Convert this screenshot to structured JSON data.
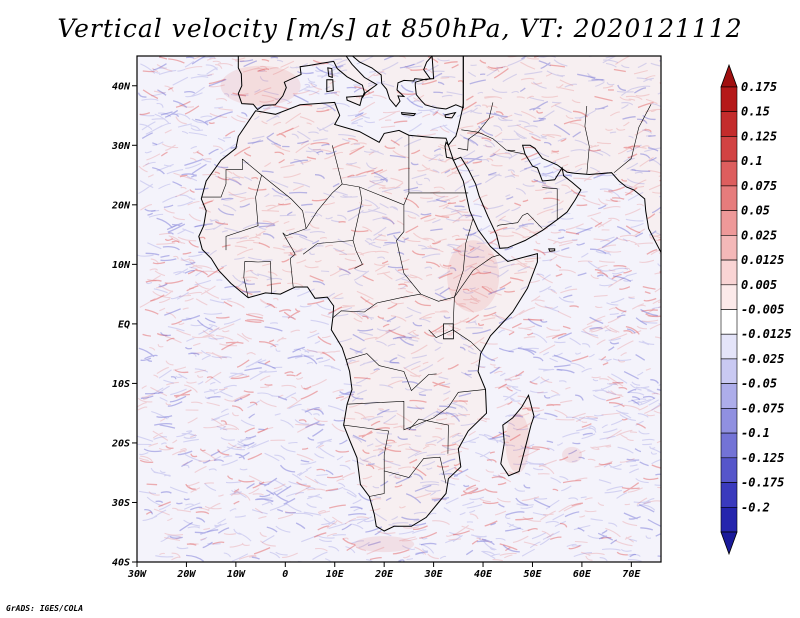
{
  "title": "Vertical velocity [m/s] at 850hPa, VT: 2020121112",
  "footer": "GrADS: IGES/COLA",
  "map": {
    "lon_range": [
      -30,
      76
    ],
    "lat_range": [
      -40,
      45
    ],
    "lat_ticks": [
      {
        "value": 40,
        "label": "40N"
      },
      {
        "value": 30,
        "label": "30N"
      },
      {
        "value": 20,
        "label": "20N"
      },
      {
        "value": 10,
        "label": "10N"
      },
      {
        "value": 0,
        "label": "EQ"
      },
      {
        "value": -10,
        "label": "10S"
      },
      {
        "value": -20,
        "label": "20S"
      },
      {
        "value": -30,
        "label": "30S"
      },
      {
        "value": -40,
        "label": "40S"
      }
    ],
    "lon_ticks": [
      {
        "value": -30,
        "label": "30W"
      },
      {
        "value": -20,
        "label": "20W"
      },
      {
        "value": -10,
        "label": "10W"
      },
      {
        "value": 0,
        "label": "0"
      },
      {
        "value": 10,
        "label": "10E"
      },
      {
        "value": 20,
        "label": "20E"
      },
      {
        "value": 30,
        "label": "30E"
      },
      {
        "value": 40,
        "label": "40E"
      },
      {
        "value": 50,
        "label": "50E"
      },
      {
        "value": 60,
        "label": "60E"
      },
      {
        "value": 70,
        "label": "70E"
      }
    ]
  },
  "colorbar": {
    "levels": [
      {
        "label": "0.175",
        "color": "#b51919"
      },
      {
        "label": "0.15",
        "color": "#c42c2c"
      },
      {
        "label": "0.125",
        "color": "#d24343"
      },
      {
        "label": "0.1",
        "color": "#dd5e5e"
      },
      {
        "label": "0.075",
        "color": "#e67c7c"
      },
      {
        "label": "0.05",
        "color": "#ee9999"
      },
      {
        "label": "0.025",
        "color": "#f4b8b8"
      },
      {
        "label": "0.0125",
        "color": "#f9d4d4"
      },
      {
        "label": "0.005",
        "color": "#fceaea"
      },
      {
        "label": "-0.005",
        "color": "#ffffff"
      },
      {
        "label": "-0.0125",
        "color": "#e4e4f9"
      },
      {
        "label": "-0.025",
        "color": "#c9c9f2"
      },
      {
        "label": "-0.05",
        "color": "#adadea"
      },
      {
        "label": "-0.075",
        "color": "#9090e0"
      },
      {
        "label": "-0.1",
        "color": "#7373d6"
      },
      {
        "label": "-0.125",
        "color": "#5656ca"
      },
      {
        "label": "-0.175",
        "color": "#3a3abd"
      },
      {
        "label": "-0.2",
        "color": "#2525ad"
      }
    ],
    "top_color": "#a01010",
    "bottom_color": "#1a1a9a"
  },
  "colors": {
    "ocean": "#f4f3fb",
    "land": "#f7eff1",
    "updraft": "#e05555",
    "downdraft": "#6060d0",
    "coast": "#000000"
  }
}
